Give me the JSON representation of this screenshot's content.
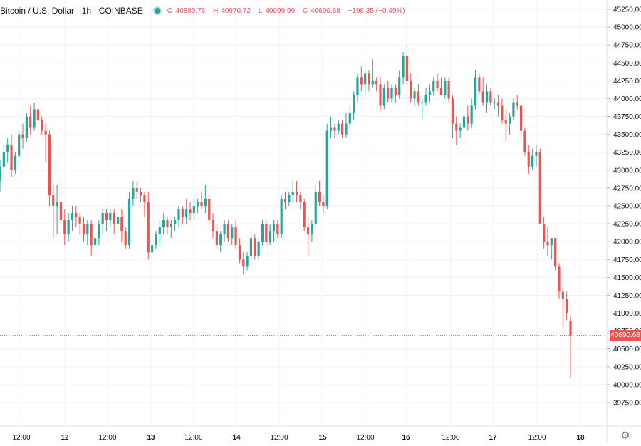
{
  "header": {
    "title": "Bitcoin / U.S. Dollar · 1h · COINBASE",
    "open_label": "O",
    "open": "40889.76",
    "high_label": "H",
    "high": "40970.72",
    "low_label": "L",
    "low": "40099.99",
    "close_label": "C",
    "close": "40690.68",
    "change": "−198.35 (−0.49%)"
  },
  "price_tag": "40690.68",
  "settings_icon": "gear-icon",
  "colors": {
    "up": "#26a69a",
    "down": "#ef5350",
    "grid": "#f0f3fa",
    "axis_text": "#131722",
    "last_price_line": "#ef5350"
  },
  "chart_data": {
    "type": "candlestick",
    "symbol": "Bitcoin / U.S. Dollar",
    "interval": "1h",
    "exchange": "COINBASE",
    "last_price": 40690.68,
    "y_ticks": [
      "45250.00",
      "45000.00",
      "44750.00",
      "44500.00",
      "44250.00",
      "44000.00",
      "43750.00",
      "43500.00",
      "43250.00",
      "43000.00",
      "42750.00",
      "42500.00",
      "42250.00",
      "42000.00",
      "41750.00",
      "41500.00",
      "41250.00",
      "41000.00",
      "40750.00",
      "40500.00",
      "40250.00",
      "40000.00",
      "39750.00"
    ],
    "x_ticks": [
      "12:00",
      "12",
      "12:00",
      "13",
      "12:00",
      "14",
      "12:00",
      "15",
      "12:00",
      "16",
      "12:00",
      "17",
      "12:00",
      "18"
    ],
    "ylim": [
      39650,
      45350
    ],
    "grid": true,
    "candles": [
      [
        42850,
        43150,
        42700,
        43050
      ],
      [
        43050,
        43350,
        42900,
        43250
      ],
      [
        43250,
        43450,
        43100,
        43350
      ],
      [
        43350,
        43500,
        42900,
        43000
      ],
      [
        43000,
        43250,
        42950,
        43200
      ],
      [
        43200,
        43550,
        43150,
        43500
      ],
      [
        43500,
        43650,
        43300,
        43450
      ],
      [
        43450,
        43800,
        43400,
        43750
      ],
      [
        43750,
        43900,
        43500,
        43600
      ],
      [
        43600,
        43950,
        43550,
        43850
      ],
      [
        43850,
        43960,
        43600,
        43700
      ],
      [
        43700,
        43750,
        43500,
        43550
      ],
      [
        43550,
        43650,
        43100,
        43500
      ],
      [
        43500,
        43550,
        42500,
        42650
      ],
      [
        42650,
        42800,
        42050,
        42500
      ],
      [
        42500,
        42800,
        42100,
        42550
      ],
      [
        42550,
        42600,
        42150,
        42300
      ],
      [
        42300,
        42450,
        41950,
        42100
      ],
      [
        42100,
        42400,
        42000,
        42300
      ],
      [
        42300,
        42500,
        42150,
        42400
      ],
      [
        42400,
        42500,
        42200,
        42350
      ],
      [
        42350,
        42400,
        42100,
        42250
      ],
      [
        42250,
        42350,
        42000,
        42100
      ],
      [
        42100,
        42300,
        41950,
        42250
      ],
      [
        42250,
        42300,
        41800,
        41950
      ],
      [
        41950,
        42150,
        41850,
        42050
      ],
      [
        42050,
        42300,
        41950,
        42250
      ],
      [
        42250,
        42450,
        42100,
        42400
      ],
      [
        42400,
        42450,
        42150,
        42300
      ],
      [
        42300,
        42450,
        42200,
        42400
      ],
      [
        42400,
        42450,
        42100,
        42250
      ],
      [
        42250,
        42400,
        42100,
        42350
      ],
      [
        42350,
        42450,
        42000,
        42150
      ],
      [
        42150,
        42200,
        41900,
        41950
      ],
      [
        41950,
        42700,
        41900,
        42600
      ],
      [
        42600,
        42850,
        42500,
        42750
      ],
      [
        42750,
        42850,
        42600,
        42700
      ],
      [
        42700,
        42750,
        42550,
        42650
      ],
      [
        42650,
        42700,
        42350,
        42550
      ],
      [
        42550,
        42700,
        41750,
        41850
      ],
      [
        41850,
        42050,
        41800,
        41950
      ],
      [
        41950,
        42150,
        41900,
        42100
      ],
      [
        42100,
        42300,
        41950,
        42200
      ],
      [
        42200,
        42400,
        42100,
        42300
      ],
      [
        42300,
        42350,
        42100,
        42200
      ],
      [
        42200,
        42300,
        42050,
        42250
      ],
      [
        42250,
        42350,
        42150,
        42300
      ],
      [
        42300,
        42500,
        42200,
        42450
      ],
      [
        42450,
        42500,
        42250,
        42350
      ],
      [
        42350,
        42600,
        42250,
        42450
      ],
      [
        42450,
        42550,
        42300,
        42400
      ],
      [
        42400,
        42600,
        42300,
        42500
      ],
      [
        42500,
        42600,
        42400,
        42550
      ],
      [
        42550,
        42700,
        42450,
        42500
      ],
      [
        42500,
        42800,
        42400,
        42600
      ],
      [
        42600,
        42650,
        42250,
        42300
      ],
      [
        42300,
        42400,
        42050,
        42150
      ],
      [
        42150,
        42250,
        41900,
        41950
      ],
      [
        41950,
        42150,
        41850,
        42100
      ],
      [
        42100,
        42300,
        42000,
        42250
      ],
      [
        42250,
        42300,
        42000,
        42050
      ],
      [
        42050,
        42250,
        41950,
        42200
      ],
      [
        42200,
        42300,
        41900,
        41950
      ],
      [
        41950,
        42050,
        41700,
        41750
      ],
      [
        41750,
        41850,
        41550,
        41650
      ],
      [
        41650,
        41850,
        41600,
        41800
      ],
      [
        41800,
        42150,
        41750,
        42050
      ],
      [
        42050,
        42100,
        41750,
        41800
      ],
      [
        41800,
        42050,
        41750,
        42000
      ],
      [
        42000,
        42300,
        41950,
        42250
      ],
      [
        42250,
        42300,
        41950,
        42000
      ],
      [
        42000,
        42250,
        41950,
        42150
      ],
      [
        42150,
        42300,
        42000,
        42250
      ],
      [
        42250,
        42300,
        42050,
        42100
      ],
      [
        42100,
        42650,
        42050,
        42600
      ],
      [
        42600,
        42700,
        42450,
        42550
      ],
      [
        42550,
        42700,
        42500,
        42650
      ],
      [
        42650,
        42850,
        42550,
        42700
      ],
      [
        42700,
        42850,
        42550,
        42650
      ],
      [
        42650,
        42700,
        42450,
        42550
      ],
      [
        42550,
        42600,
        42150,
        42200
      ],
      [
        42200,
        42350,
        41800,
        42100
      ],
      [
        42100,
        42300,
        42000,
        42250
      ],
      [
        42250,
        42800,
        42200,
        42700
      ],
      [
        42700,
        42850,
        42500,
        42550
      ],
      [
        42550,
        42650,
        42400,
        42500
      ],
      [
        42500,
        43650,
        42450,
        43550
      ],
      [
        43550,
        43750,
        43450,
        43600
      ],
      [
        43600,
        43650,
        43450,
        43550
      ],
      [
        43550,
        43700,
        43500,
        43650
      ],
      [
        43650,
        43700,
        43450,
        43500
      ],
      [
        43500,
        43800,
        43450,
        43650
      ],
      [
        43650,
        43900,
        43600,
        43800
      ],
      [
        43800,
        44100,
        43700,
        44050
      ],
      [
        44050,
        44350,
        43950,
        44300
      ],
      [
        44300,
        44450,
        44100,
        44200
      ],
      [
        44200,
        44400,
        44050,
        44350
      ],
      [
        44350,
        44400,
        44100,
        44200
      ],
      [
        44200,
        44550,
        44150,
        44250
      ],
      [
        44250,
        44300,
        44100,
        44200
      ],
      [
        44200,
        44300,
        43850,
        43900
      ],
      [
        43900,
        44200,
        43850,
        44150
      ],
      [
        44150,
        44250,
        43950,
        44000
      ],
      [
        44000,
        44200,
        43950,
        44150
      ],
      [
        44150,
        44200,
        43950,
        44050
      ],
      [
        44050,
        44400,
        44000,
        44300
      ],
      [
        44300,
        44650,
        44200,
        44600
      ],
      [
        44600,
        44750,
        44200,
        44250
      ],
      [
        44250,
        44350,
        43950,
        44000
      ],
      [
        44000,
        44150,
        43900,
        44100
      ],
      [
        44100,
        44200,
        43900,
        43950
      ],
      [
        43950,
        44000,
        43700,
        43950
      ],
      [
        43950,
        44150,
        43900,
        44050
      ],
      [
        44050,
        44200,
        43950,
        44100
      ],
      [
        44100,
        44300,
        44050,
        44250
      ],
      [
        44250,
        44350,
        44100,
        44150
      ],
      [
        44150,
        44300,
        44050,
        44050
      ],
      [
        44050,
        44300,
        44000,
        44250
      ],
      [
        44250,
        44300,
        43950,
        44000
      ],
      [
        44000,
        44050,
        43450,
        43650
      ],
      [
        43650,
        43750,
        43350,
        43550
      ],
      [
        43550,
        43650,
        43450,
        43600
      ],
      [
        43600,
        43800,
        43500,
        43750
      ],
      [
        43750,
        43900,
        43550,
        43650
      ],
      [
        43650,
        44000,
        43600,
        43900
      ],
      [
        43900,
        44400,
        43850,
        44300
      ],
      [
        44300,
        44350,
        44050,
        44100
      ],
      [
        44100,
        44300,
        43900,
        43950
      ],
      [
        43950,
        44200,
        43800,
        44100
      ],
      [
        44100,
        44150,
        43900,
        43950
      ],
      [
        43950,
        44000,
        43850,
        43950
      ],
      [
        43950,
        44050,
        43750,
        43900
      ],
      [
        43900,
        44000,
        43650,
        43700
      ],
      [
        43700,
        43850,
        43400,
        43650
      ],
      [
        43650,
        43800,
        43500,
        43750
      ],
      [
        43750,
        44000,
        43700,
        43950
      ],
      [
        43950,
        44050,
        43850,
        43900
      ],
      [
        43900,
        43950,
        43450,
        43550
      ],
      [
        43550,
        43600,
        43200,
        43250
      ],
      [
        43250,
        43350,
        42950,
        43050
      ],
      [
        43050,
        43300,
        43000,
        43200
      ],
      [
        43200,
        43350,
        43050,
        43250
      ],
      [
        43250,
        43300,
        42250,
        42250
      ],
      [
        42250,
        42350,
        41900,
        42000
      ],
      [
        42000,
        42200,
        41800,
        41950
      ],
      [
        41950,
        42050,
        41750,
        42050
      ],
      [
        42050,
        42050,
        41600,
        41650
      ],
      [
        41650,
        41700,
        41200,
        41300
      ],
      [
        41300,
        41350,
        40800,
        41200
      ],
      [
        41200,
        41300,
        40900,
        41000
      ],
      [
        40889.76,
        40970.72,
        40099.99,
        40690.68
      ]
    ]
  }
}
